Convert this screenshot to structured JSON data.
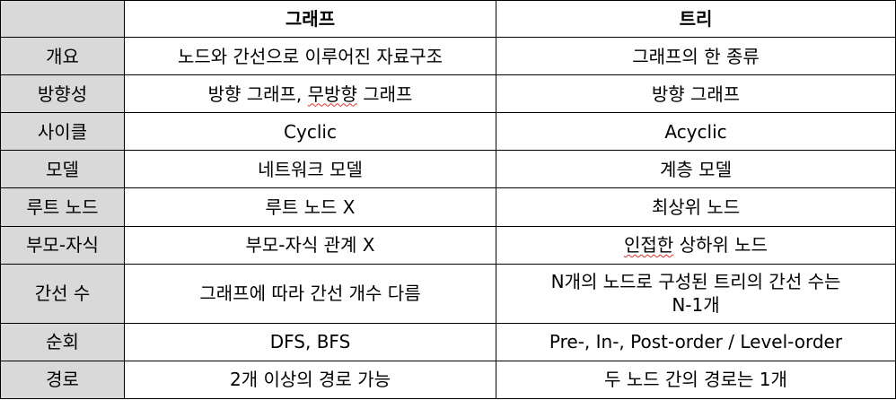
{
  "header": {
    "col1": "그래프",
    "col2": "트리"
  },
  "rows": [
    {
      "label": "개요",
      "graph": "노드와 간선으로 이루어진 자료구조",
      "tree": "그래프의 한 종류"
    },
    {
      "label": "방향성",
      "graph_a": "방향 그래프, ",
      "graph_b": "무방향",
      "graph_c": " 그래프",
      "tree": "방향 그래프"
    },
    {
      "label": "사이클",
      "graph": "Cyclic",
      "tree": "Acyclic"
    },
    {
      "label": "모델",
      "graph": "네트워크 모델",
      "tree": "계층 모델"
    },
    {
      "label": "루트 노드",
      "graph": "루트 노드 X",
      "tree": "최상위 노드"
    },
    {
      "label": "부모-자식",
      "graph": "부모-자식 관계 X",
      "tree_a": "인접한",
      "tree_b": " 상하위 노드"
    },
    {
      "label": "간선 수",
      "graph": "그래프에 따라 간선 개수 다름",
      "tree_l1": "N개의 노드로 구성된 트리의 간선 수는",
      "tree_l2": "N-1개"
    },
    {
      "label": "순회",
      "graph": "DFS, BFS",
      "tree": "Pre-, In-, Post-order / Level-order"
    },
    {
      "label": "경로",
      "graph": "2개 이상의 경로 가능",
      "tree": "두 노드 간의 경로는 1개"
    }
  ]
}
